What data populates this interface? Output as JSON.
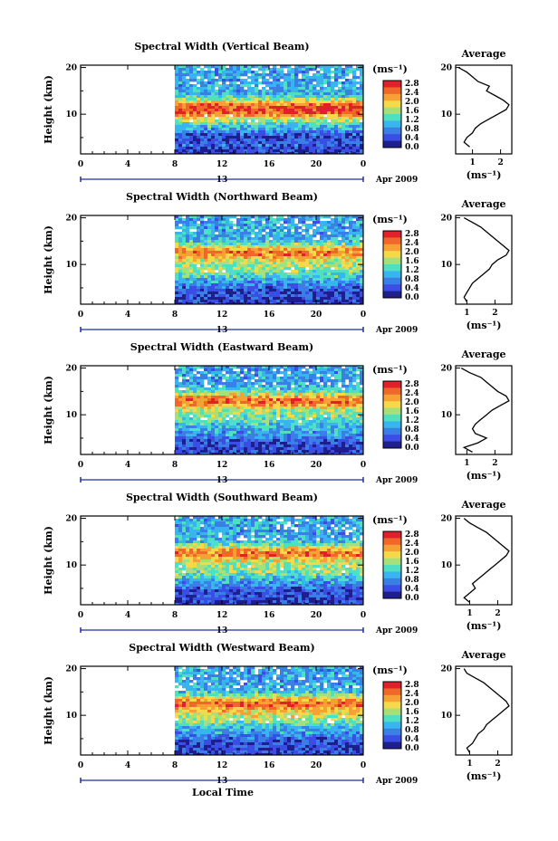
{
  "figure": {
    "xlabel": "Local Time",
    "ylabel": "Height (km)",
    "date_label": "Apr 2009",
    "date_tick": "13",
    "unit_label": "(ms⁻¹)",
    "avg_title": "Average",
    "avg_xlabel": "(ms⁻¹)"
  },
  "colorbar": {
    "ticks": [
      "2.8",
      "2.4",
      "2.0",
      "1.6",
      "1.2",
      "0.8",
      "0.4",
      "0.0"
    ],
    "colors": [
      "#e0202a",
      "#f0672a",
      "#f6a035",
      "#f5d94a",
      "#a6e07b",
      "#4fe0c2",
      "#38b4ee",
      "#3a7fe6",
      "#3a4ee6",
      "#1e1e8c"
    ]
  },
  "chart_data": [
    {
      "type": "heatmap",
      "title": "Spectral Width (Vertical Beam)",
      "x_ticks": [
        "0",
        "4",
        "8",
        "12",
        "16",
        "20",
        "0"
      ],
      "y_ticks": [
        "20",
        "10"
      ],
      "xlim": [
        0,
        24
      ],
      "ylim": [
        1.5,
        20.5
      ],
      "data_start_hour": 8,
      "layers": [
        {
          "height": 11.5,
          "value": 2.6
        },
        {
          "height": 9.5,
          "value": 1.7
        },
        {
          "height": 4.5,
          "value": 0.3
        }
      ],
      "average": {
        "title": "Average",
        "x_ticks": [
          "1",
          "2"
        ],
        "xlim": [
          0.4,
          2.4
        ],
        "profile": [
          [
            3,
            0.9
          ],
          [
            4,
            0.7
          ],
          [
            5,
            0.8
          ],
          [
            6,
            1.0
          ],
          [
            7,
            1.1
          ],
          [
            8,
            1.3
          ],
          [
            9,
            1.6
          ],
          [
            10,
            1.9
          ],
          [
            11,
            2.2
          ],
          [
            12,
            2.3
          ],
          [
            13,
            2.1
          ],
          [
            14,
            1.8
          ],
          [
            15,
            1.5
          ],
          [
            16,
            1.6
          ],
          [
            17,
            1.2
          ],
          [
            18,
            1.0
          ],
          [
            19,
            0.8
          ],
          [
            20,
            0.5
          ]
        ]
      }
    },
    {
      "type": "heatmap",
      "title": "Spectral Width (Northward Beam)",
      "x_ticks": [
        "0",
        "4",
        "8",
        "12",
        "16",
        "20",
        "0"
      ],
      "y_ticks": [
        "20",
        "10"
      ],
      "xlim": [
        0,
        24
      ],
      "ylim": [
        1.5,
        20.5
      ],
      "data_start_hour": 8,
      "layers": [
        {
          "height": 12.5,
          "value": 2.5
        },
        {
          "height": 9.0,
          "value": 1.6
        },
        {
          "height": 4.0,
          "value": 0.3
        }
      ],
      "average": {
        "title": "Average",
        "x_ticks": [
          "1",
          "2"
        ],
        "xlim": [
          0.6,
          2.6
        ],
        "profile": [
          [
            2,
            1.0
          ],
          [
            3,
            0.9
          ],
          [
            4,
            1.0
          ],
          [
            5,
            1.1
          ],
          [
            6,
            1.2
          ],
          [
            7,
            1.4
          ],
          [
            8,
            1.6
          ],
          [
            9,
            1.8
          ],
          [
            10,
            1.9
          ],
          [
            11,
            2.1
          ],
          [
            12,
            2.4
          ],
          [
            13,
            2.5
          ],
          [
            14,
            2.3
          ],
          [
            15,
            2.1
          ],
          [
            16,
            1.9
          ],
          [
            17,
            1.7
          ],
          [
            18,
            1.5
          ],
          [
            19,
            1.2
          ],
          [
            20,
            0.9
          ]
        ]
      }
    },
    {
      "type": "heatmap",
      "title": "Spectral Width (Eastward Beam)",
      "x_ticks": [
        "0",
        "4",
        "8",
        "12",
        "16",
        "20",
        "0"
      ],
      "y_ticks": [
        "20",
        "10"
      ],
      "xlim": [
        0,
        24
      ],
      "ylim": [
        1.5,
        20.5
      ],
      "data_start_hour": 8,
      "layers": [
        {
          "height": 13.0,
          "value": 2.6
        },
        {
          "height": 9.5,
          "value": 1.5
        },
        {
          "height": 3.5,
          "value": 0.3
        }
      ],
      "average": {
        "title": "Average",
        "x_ticks": [
          "1",
          "2"
        ],
        "xlim": [
          0.6,
          2.6
        ],
        "profile": [
          [
            2,
            1.2
          ],
          [
            3,
            0.9
          ],
          [
            4,
            1.4
          ],
          [
            5,
            1.7
          ],
          [
            6,
            1.3
          ],
          [
            7,
            1.2
          ],
          [
            8,
            1.3
          ],
          [
            9,
            1.5
          ],
          [
            10,
            1.7
          ],
          [
            11,
            1.9
          ],
          [
            12,
            2.2
          ],
          [
            13,
            2.5
          ],
          [
            14,
            2.4
          ],
          [
            15,
            2.1
          ],
          [
            16,
            1.9
          ],
          [
            17,
            1.7
          ],
          [
            18,
            1.5
          ],
          [
            19,
            1.1
          ],
          [
            20,
            0.8
          ]
        ]
      }
    },
    {
      "type": "heatmap",
      "title": "Spectral Width (Southward Beam)",
      "x_ticks": [
        "0",
        "4",
        "8",
        "12",
        "16",
        "20",
        "0"
      ],
      "y_ticks": [
        "20",
        "10"
      ],
      "xlim": [
        0,
        24
      ],
      "ylim": [
        1.5,
        20.5
      ],
      "data_start_hour": 8,
      "layers": [
        {
          "height": 12.5,
          "value": 2.5
        },
        {
          "height": 9.0,
          "value": 1.6
        },
        {
          "height": 4.0,
          "value": 0.3
        }
      ],
      "average": {
        "title": "Average",
        "x_ticks": [
          "1",
          "2"
        ],
        "xlim": [
          0.5,
          2.5
        ],
        "profile": [
          [
            2,
            1.0
          ],
          [
            3,
            0.8
          ],
          [
            4,
            1.0
          ],
          [
            5,
            1.2
          ],
          [
            6,
            1.1
          ],
          [
            7,
            1.3
          ],
          [
            8,
            1.5
          ],
          [
            9,
            1.7
          ],
          [
            10,
            1.9
          ],
          [
            11,
            2.1
          ],
          [
            12,
            2.3
          ],
          [
            13,
            2.4
          ],
          [
            14,
            2.2
          ],
          [
            15,
            2.0
          ],
          [
            16,
            1.8
          ],
          [
            17,
            1.6
          ],
          [
            18,
            1.3
          ],
          [
            19,
            1.0
          ],
          [
            20,
            0.8
          ]
        ]
      }
    },
    {
      "type": "heatmap",
      "title": "Spectral Width (Westward Beam)",
      "x_ticks": [
        "0",
        "4",
        "8",
        "12",
        "16",
        "20",
        "0"
      ],
      "y_ticks": [
        "20",
        "10"
      ],
      "xlim": [
        0,
        24
      ],
      "ylim": [
        1.5,
        20.5
      ],
      "data_start_hour": 8,
      "layers": [
        {
          "height": 12.5,
          "value": 2.6
        },
        {
          "height": 9.5,
          "value": 1.6
        },
        {
          "height": 4.0,
          "value": 0.3
        }
      ],
      "average": {
        "title": "Average",
        "x_ticks": [
          "1",
          "2"
        ],
        "xlim": [
          0.5,
          2.5
        ],
        "profile": [
          [
            2,
            1.0
          ],
          [
            3,
            0.9
          ],
          [
            4,
            1.1
          ],
          [
            5,
            1.2
          ],
          [
            6,
            1.3
          ],
          [
            7,
            1.5
          ],
          [
            8,
            1.6
          ],
          [
            9,
            1.8
          ],
          [
            10,
            2.0
          ],
          [
            11,
            2.2
          ],
          [
            12,
            2.4
          ],
          [
            13,
            2.3
          ],
          [
            14,
            2.1
          ],
          [
            15,
            1.9
          ],
          [
            16,
            1.7
          ],
          [
            17,
            1.5
          ],
          [
            18,
            1.2
          ],
          [
            19,
            0.9
          ],
          [
            20,
            0.8
          ]
        ]
      }
    }
  ]
}
